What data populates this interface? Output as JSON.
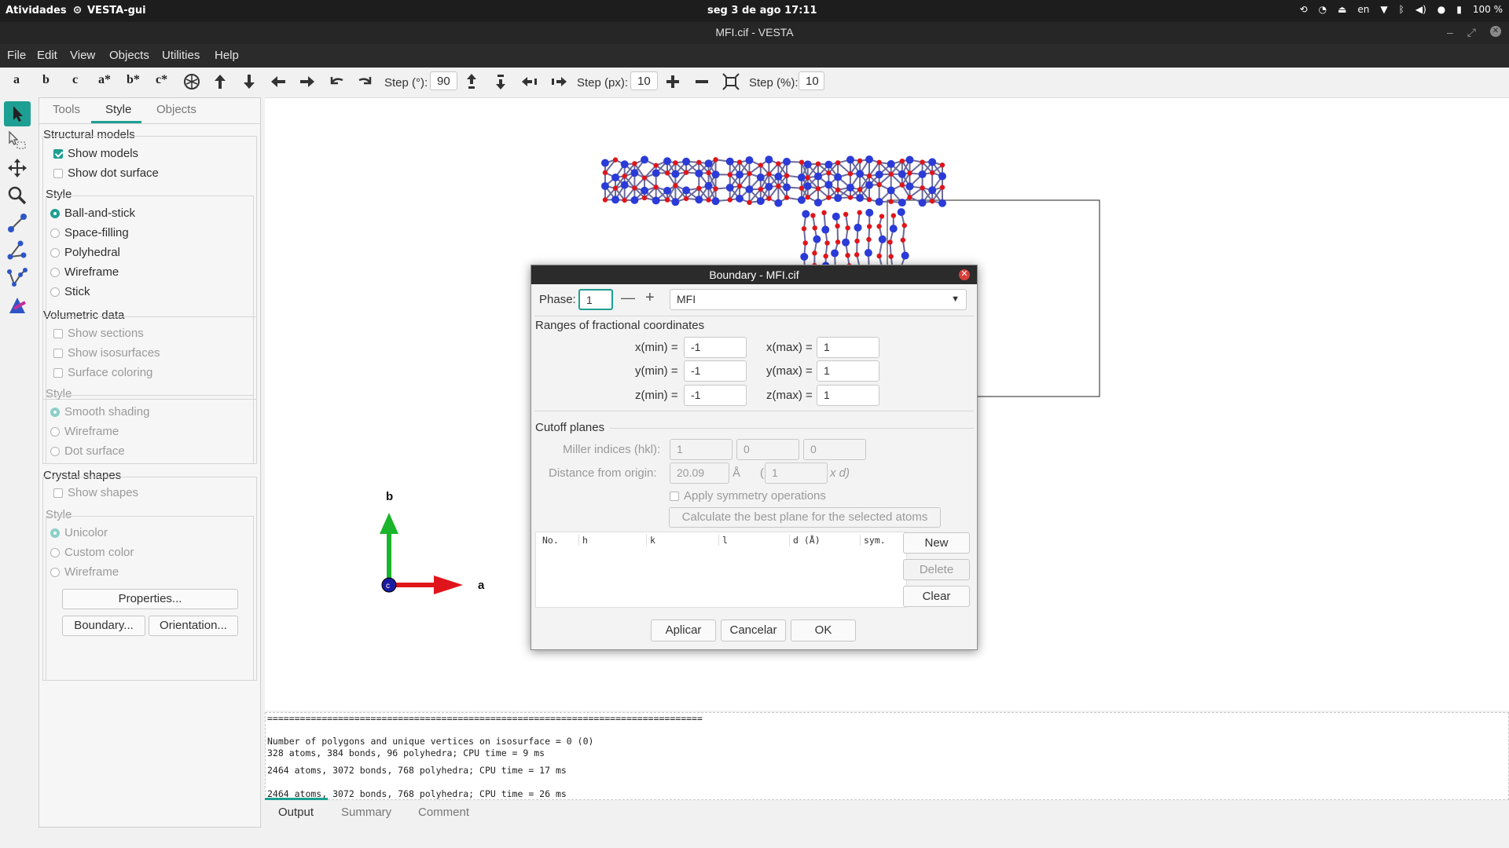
{
  "system_bar": {
    "activities": "Atividades",
    "app_name": "VESTA-gui",
    "clock": "seg 3 de ago  17:11",
    "lang": "en",
    "battery": "100 %"
  },
  "window": {
    "title": "MFI.cif - VESTA"
  },
  "menu": [
    "File",
    "Edit",
    "View",
    "Objects",
    "Utilities",
    "Help"
  ],
  "toolbar": {
    "axis_buttons": [
      "a",
      "b",
      "c",
      "a*",
      "b*",
      "c*"
    ],
    "step_deg_label": "Step (°):",
    "step_deg_value": "90",
    "step_px_label": "Step (px):",
    "step_px_value": "10",
    "step_pct_label": "Step (%):",
    "step_pct_value": "10"
  },
  "left_panel": {
    "tabs": [
      "Tools",
      "Style",
      "Objects"
    ],
    "structural_models": {
      "title": "Structural models",
      "show_models": "Show models",
      "show_dot_surface": "Show dot surface",
      "style_title": "Style",
      "styles": [
        "Ball-and-stick",
        "Space-filling",
        "Polyhedral",
        "Wireframe",
        "Stick"
      ]
    },
    "volumetric_data": {
      "title": "Volumetric data",
      "show_sections": "Show sections",
      "show_isosurfaces": "Show isosurfaces",
      "surface_coloring": "Surface coloring",
      "style_title": "Style",
      "styles": [
        "Smooth shading",
        "Wireframe",
        "Dot surface"
      ]
    },
    "crystal_shapes": {
      "title": "Crystal shapes",
      "show_shapes": "Show shapes",
      "style_title": "Style",
      "styles": [
        "Unicolor",
        "Custom color",
        "Wireframe"
      ]
    },
    "properties_button": "Properties...",
    "boundary_button": "Boundary...",
    "orientation_button": "Orientation..."
  },
  "axes": {
    "a": "a",
    "b": "b",
    "c": "c"
  },
  "dialog": {
    "title": "Boundary - MFI.cif",
    "phase_label": "Phase:",
    "phase_value": "1",
    "phase_name": "MFI",
    "ranges_title": "Ranges of fractional coordinates",
    "xmin_label": "x(min) =",
    "xmin": "-1",
    "xmax_label": "x(max) =",
    "xmax": "1",
    "ymin_label": "y(min) =",
    "ymin": "-1",
    "ymax_label": "y(max) =",
    "ymax": "1",
    "zmin_label": "z(min) =",
    "zmin": "-1",
    "zmax_label": "z(max) =",
    "zmax": "1",
    "cutoff_title": "Cutoff planes",
    "miller_label": "Miller indices (hkl):",
    "miller": [
      "1",
      "0",
      "0"
    ],
    "distance_label": "Distance from origin:",
    "distance_value": "20.09",
    "distance_unit": "Å",
    "multiplier_open": "(",
    "multiplier_value": "1",
    "multiplier_unit": "x d)",
    "apply_sym": "Apply symmetry operations",
    "calc_best": "Calculate the best plane for the selected atoms",
    "table_headers": [
      "No.",
      "h",
      "k",
      "l",
      "d (Å)",
      "sym."
    ],
    "new_button": "New",
    "delete_button": "Delete",
    "clear_button": "Clear",
    "apply_button": "Aplicar",
    "cancel_button": "Cancelar",
    "ok_button": "OK"
  },
  "output": {
    "lines": [
      "================================================================================",
      "",
      "Number of polygons and unique vertices on isosurface = 0 (0)",
      "328 atoms, 384 bonds, 96 polyhedra; CPU time = 9 ms",
      "",
      "2464 atoms, 3072 bonds, 768 polyhedra; CPU time = 17 ms",
      "",
      "2464 atoms, 3072 bonds, 768 polyhedra; CPU time = 26 ms"
    ],
    "tabs": [
      "Output",
      "Summary",
      "Comment"
    ]
  },
  "colors": {
    "accent": "#1e9f93",
    "oxygen": "#e0151b",
    "silicon": "#2b3bd8"
  }
}
